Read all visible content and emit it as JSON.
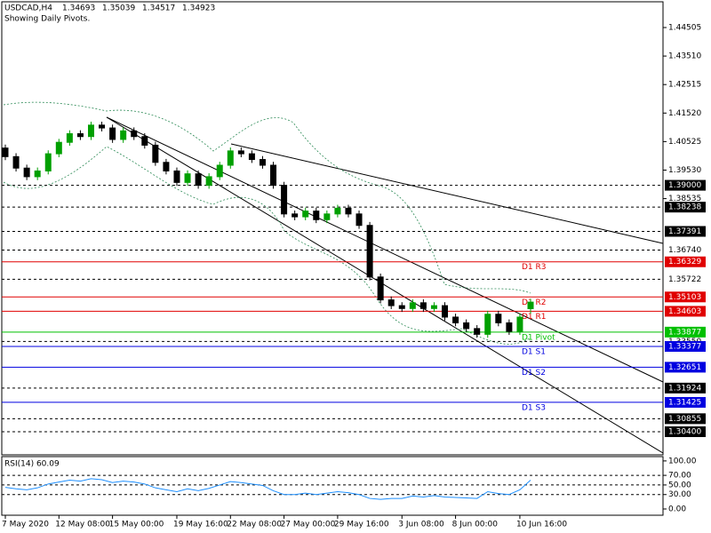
{
  "chart_data": {
    "type": "candlestick",
    "title": "USDCAD,H4",
    "subtitle": "Showing Daily Pivots.",
    "categories": [
      "7 May 2020",
      null,
      null,
      null,
      null,
      "12 May 08:00",
      null,
      null,
      null,
      null,
      "15 May 00:00",
      null,
      null,
      null,
      null,
      null,
      "19 May 16:00",
      null,
      null,
      null,
      null,
      "22 May 08:00",
      null,
      null,
      null,
      null,
      "27 May 00:00",
      null,
      null,
      null,
      null,
      "29 May 16:00",
      null,
      null,
      null,
      null,
      null,
      "3 Jun 08:00",
      null,
      null,
      null,
      null,
      "8 Jun 00:00",
      null,
      null,
      null,
      null,
      null,
      "10 Jun 16:00",
      null
    ],
    "open": [
      1.403,
      1.4,
      1.396,
      1.393,
      1.395,
      1.401,
      1.405,
      1.408,
      1.407,
      1.411,
      1.41,
      1.406,
      1.409,
      1.407,
      1.404,
      1.398,
      1.395,
      1.391,
      1.394,
      1.39,
      1.393,
      1.397,
      1.402,
      1.401,
      1.399,
      1.397,
      1.39,
      1.38,
      1.379,
      1.381,
      1.378,
      1.38,
      1.382,
      1.38,
      1.376,
      1.358,
      1.35,
      1.348,
      1.347,
      1.349,
      1.347,
      1.348,
      1.344,
      1.342,
      1.34,
      1.338,
      1.345,
      1.342,
      1.339,
      1.34693
    ],
    "high": [
      1.4042,
      1.4012,
      1.3972,
      1.3962,
      1.4022,
      1.4062,
      1.4092,
      1.4092,
      1.4122,
      1.4122,
      1.4112,
      1.4102,
      1.4102,
      1.4082,
      1.4052,
      1.3992,
      1.3962,
      1.3952,
      1.3952,
      1.3942,
      1.3982,
      1.4032,
      1.4032,
      1.4022,
      1.4002,
      1.3982,
      1.3912,
      1.3812,
      1.3822,
      1.3822,
      1.3812,
      1.3832,
      1.3832,
      1.3812,
      1.3772,
      1.3592,
      1.3512,
      1.3492,
      1.3502,
      1.3502,
      1.3492,
      1.3492,
      1.3452,
      1.3432,
      1.3412,
      1.3462,
      1.3462,
      1.3432,
      1.3452,
      1.35039
    ],
    "low": [
      1.3988,
      1.3948,
      1.3918,
      1.3918,
      1.3938,
      1.3998,
      1.4038,
      1.4058,
      1.4058,
      1.4088,
      1.4048,
      1.4048,
      1.4058,
      1.4028,
      1.3968,
      1.3938,
      1.3898,
      1.3898,
      1.3888,
      1.3888,
      1.3918,
      1.3958,
      1.3998,
      1.3978,
      1.3958,
      1.3888,
      1.3788,
      1.3778,
      1.3778,
      1.3768,
      1.3768,
      1.3788,
      1.3788,
      1.3748,
      1.3568,
      1.3488,
      1.3468,
      1.3458,
      1.3458,
      1.3458,
      1.3458,
      1.3428,
      1.3408,
      1.3388,
      1.3368,
      1.3368,
      1.3408,
      1.3378,
      1.3378,
      1.34517
    ],
    "close": [
      1.4,
      1.396,
      1.393,
      1.395,
      1.401,
      1.405,
      1.408,
      1.407,
      1.411,
      1.41,
      1.406,
      1.409,
      1.407,
      1.404,
      1.398,
      1.395,
      1.391,
      1.394,
      1.39,
      1.393,
      1.397,
      1.402,
      1.401,
      1.399,
      1.397,
      1.39,
      1.38,
      1.379,
      1.381,
      1.378,
      1.38,
      1.382,
      1.38,
      1.376,
      1.358,
      1.35,
      1.348,
      1.347,
      1.349,
      1.347,
      1.348,
      1.344,
      1.342,
      1.34,
      1.338,
      1.345,
      1.342,
      1.339,
      1.344,
      1.34923
    ],
    "up_color": "#00a000",
    "down_color": "#000000",
    "ylim": [
      1.29594,
      1.45404
    ],
    "yticks": [
      1.44505,
      {
        "value": 1.4351,
        "label": "1.43510"
      },
      1.42515,
      {
        "value": 1.4152,
        "label": "1.41520"
      },
      1.40525,
      {
        "value": 1.3953,
        "label": "1.39530"
      },
      1.38535
    ],
    "levels": [
      {
        "value": 1.39,
        "label": "1.39000",
        "color": "#000000",
        "boxed": true
      },
      {
        "value": 1.38238,
        "label": "1.38238",
        "color": "#000000",
        "boxed": true
      },
      {
        "value": 1.37391,
        "label": "1.37391",
        "color": "#000000",
        "boxed": true
      },
      {
        "value": 1.3674,
        "label": "1.36740",
        "color": "#000000",
        "boxed": false
      },
      {
        "value": 1.36329,
        "label": "1.36329",
        "color": "#e00000",
        "boxed": true,
        "name": "D1  R3"
      },
      {
        "value": 1.35722,
        "label": "1.35722",
        "color": "#000000",
        "boxed": false
      },
      {
        "value": 1.35103,
        "label": "1.35103",
        "color": "#e00000",
        "boxed": true,
        "name": "D1  R2"
      },
      {
        "value": 1.34603,
        "label": "1.34603",
        "color": "#e00000",
        "boxed": true,
        "name": "D1  R1"
      },
      {
        "value": 1.33877,
        "label": "1.33877",
        "color": "#00c000",
        "boxed": true,
        "name": "D1  Pivot"
      },
      {
        "value": 1.3355,
        "label": "1.33550",
        "color": "#000000",
        "boxed": false
      },
      {
        "value": 1.33377,
        "label": "1.33377",
        "color": "#0000e0",
        "boxed": true,
        "name": "D1  S1"
      },
      {
        "value": 1.32651,
        "label": "1.32651",
        "color": "#0000e0",
        "boxed": true,
        "name": "D1  S2"
      },
      {
        "value": 1.31924,
        "label": "1.31924",
        "color": "#000000",
        "boxed": true
      },
      {
        "value": 1.31425,
        "label": "1.31425",
        "color": "#0000e0",
        "boxed": true,
        "name": "D1  S3"
      },
      {
        "value": 1.30855,
        "label": "1.30855",
        "color": "#000000",
        "boxed": true
      },
      {
        "value": 1.304,
        "label": "1.30400",
        "color": "#000000",
        "boxed": true
      }
    ],
    "rsi": {
      "title": "RSI(14) 60.09",
      "color": "#1e90ff",
      "values": [
        45,
        42,
        40,
        44,
        52,
        56,
        60,
        58,
        63,
        61,
        55,
        58,
        56,
        52,
        44,
        40,
        36,
        42,
        38,
        43,
        50,
        57,
        55,
        52,
        49,
        38,
        30,
        30,
        33,
        30,
        33,
        36,
        34,
        30,
        22,
        20,
        22,
        22,
        27,
        25,
        28,
        25,
        24,
        23,
        22,
        36,
        32,
        30,
        40,
        60.09
      ],
      "ylim": [
        -13,
        109
      ],
      "yticks": [
        {
          "value": 100,
          "label": "100.00"
        },
        {
          "value": 70,
          "label": "70.00"
        },
        {
          "value": 50,
          "label": "50.00"
        },
        {
          "value": 30,
          "label": "30.00"
        },
        {
          "value": 0,
          "label": "0.00"
        }
      ],
      "levels": [
        70,
        50,
        30
      ]
    }
  }
}
